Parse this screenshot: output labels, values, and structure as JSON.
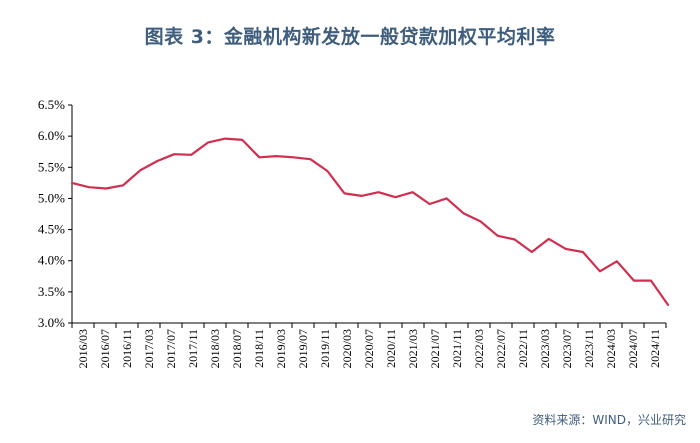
{
  "chart_data": {
    "type": "line",
    "title": "图表 3：金融机构新发放一般贷款加权平均利率",
    "source": "资料来源：WIND，兴业研究",
    "xlabel": "",
    "ylabel": "",
    "ylim": [
      3.0,
      6.5
    ],
    "yticks": [
      "3.0%",
      "3.5%",
      "4.0%",
      "4.5%",
      "5.0%",
      "5.5%",
      "6.0%",
      "6.5%"
    ],
    "line_color": "#d12f50",
    "x_tick_labels": [
      "2016/03",
      "2016/07",
      "2016/11",
      "2017/03",
      "2017/07",
      "2017/11",
      "2018/03",
      "2018/07",
      "2018/11",
      "2019/03",
      "2019/07",
      "2019/11",
      "2020/03",
      "2020/07",
      "2020/11",
      "2021/03",
      "2021/07",
      "2021/11",
      "2022/03",
      "2022/07",
      "2022/11",
      "2023/03",
      "2023/07",
      "2023/11",
      "2024/03",
      "2024/07",
      "2024/11"
    ],
    "series": [
      {
        "name": "金融机构新发放一般贷款加权平均利率",
        "values": [
          5.25,
          5.18,
          5.16,
          5.21,
          5.45,
          5.6,
          5.71,
          5.7,
          5.9,
          5.96,
          5.94,
          5.66,
          5.68,
          5.66,
          5.63,
          5.44,
          5.08,
          5.04,
          5.1,
          5.02,
          5.1,
          4.91,
          5.0,
          4.76,
          4.63,
          4.4,
          4.34,
          4.14,
          4.35,
          4.19,
          4.14,
          3.83,
          3.99,
          3.68,
          3.68,
          3.29
        ]
      }
    ]
  }
}
